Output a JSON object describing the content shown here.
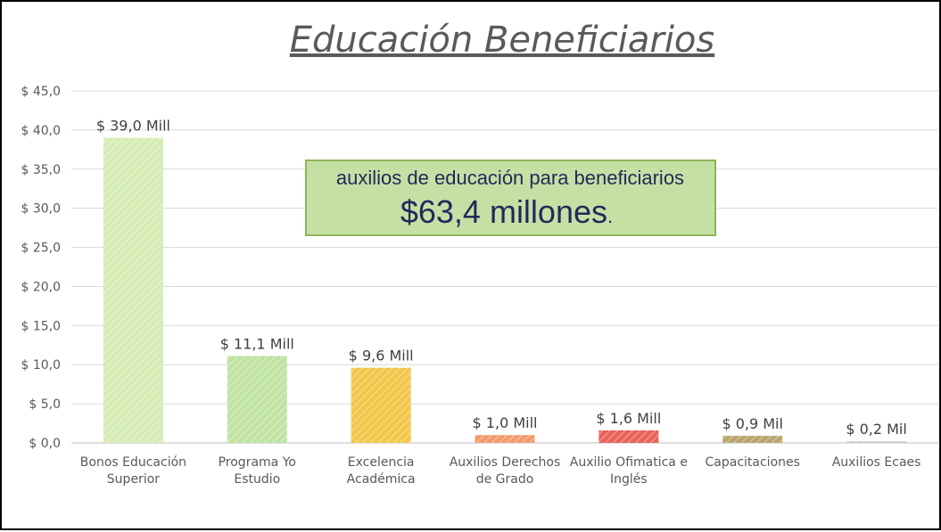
{
  "chart_data": {
    "type": "bar",
    "title": "Educación Beneficiarios",
    "categories": [
      [
        "Bonos Educación",
        "Superior"
      ],
      [
        "Programa Yo",
        "Estudio"
      ],
      [
        "Excelencia",
        "Académica"
      ],
      [
        "Auxilios Derechos",
        "de Grado"
      ],
      [
        "Auxilio Ofimatica e",
        "Inglés"
      ],
      [
        "Capacitaciones"
      ],
      [
        "Auxilios Ecaes"
      ]
    ],
    "values": [
      39.0,
      11.1,
      9.6,
      1.0,
      1.6,
      0.9,
      0.2
    ],
    "data_labels": [
      "$ 39,0 Mill",
      "$ 11,1 Mill",
      "$ 9,6 Mill",
      "$ 1,0 Mill",
      "$ 1,6 Mill",
      "$ 0,9 Mil",
      "$ 0,2 Mil"
    ],
    "bar_colors": [
      "#d5ecb4",
      "#bfe3a2",
      "#f2c84b",
      "#f29c6b",
      "#e8645a",
      "#b9a66e",
      "#c9c9c9"
    ],
    "ylim": [
      0,
      45
    ],
    "yticks": [
      0,
      5,
      10,
      15,
      20,
      25,
      30,
      35,
      40,
      45
    ],
    "ytick_labels": [
      "$ 0,0",
      "$ 5,0",
      "$ 10,0",
      "$ 15,0",
      "$ 20,0",
      "$ 25,0",
      "$ 30,0",
      "$ 35,0",
      "$ 40,0",
      "$ 45,0"
    ],
    "grid": true,
    "xlabel": "",
    "ylabel": ""
  },
  "callout": {
    "line1": "auxilios de educación para beneficiarios",
    "line2": "$63,4 millones",
    "line2_suffix": "."
  }
}
